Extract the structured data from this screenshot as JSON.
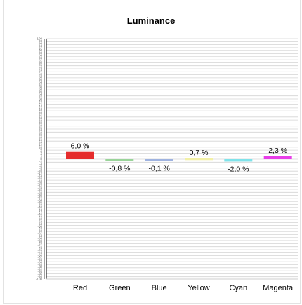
{
  "chart_data": {
    "type": "bar",
    "title": "Luminance",
    "xlabel": "",
    "ylabel": "",
    "ylim": [
      -100,
      100
    ],
    "grid": true,
    "categories": [
      "Red",
      "Green",
      "Blue",
      "Yellow",
      "Cyan",
      "Magenta"
    ],
    "values": [
      6.0,
      -0.8,
      -0.1,
      0.7,
      -2.0,
      2.3
    ],
    "value_labels": [
      "6,0 %",
      "-0,8 %",
      "-0,1 %",
      "0,7 %",
      "-2,0 %",
      "2,3 %"
    ],
    "colors": [
      "#e52b2b",
      "#9ad49a",
      "#9fb3e0",
      "#f2f0a6",
      "#7fe3ea",
      "#e83ee8"
    ]
  }
}
